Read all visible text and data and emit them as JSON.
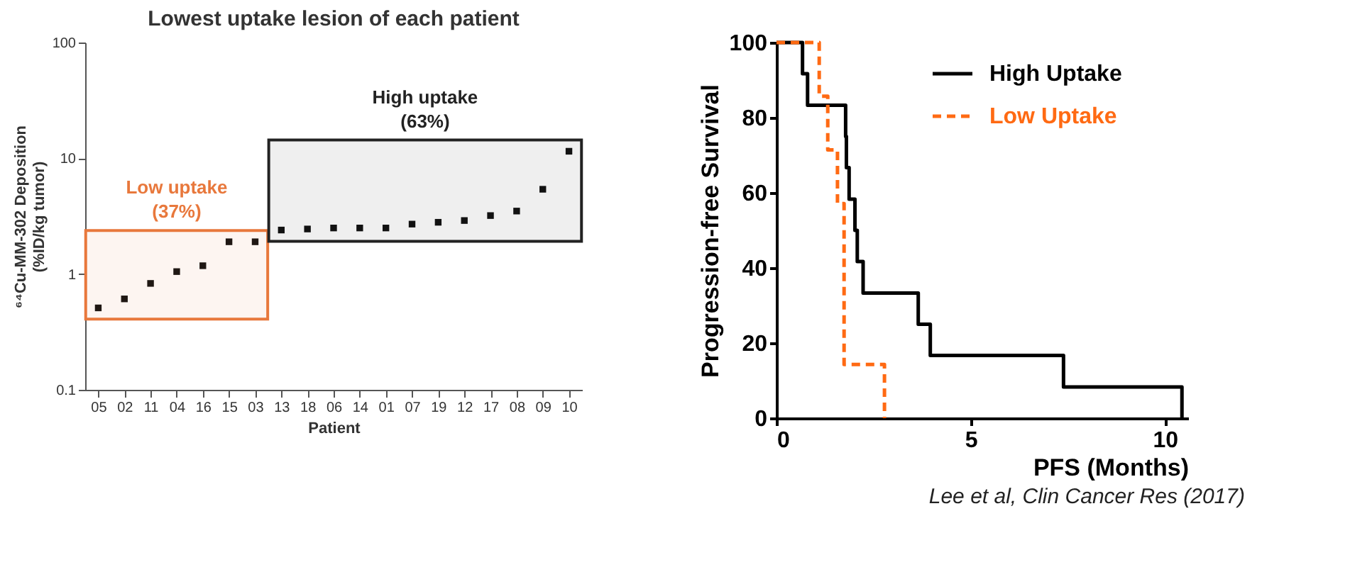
{
  "chart_data": [
    {
      "type": "scatter",
      "title": "Lowest uptake lesion of each patient",
      "xlabel": "Patient",
      "ylabel": "⁶⁴Cu-MM-302 Deposition\n(%ID/kg tumor)",
      "categories": [
        "05",
        "02",
        "11",
        "04",
        "16",
        "15",
        "03",
        "13",
        "18",
        "06",
        "14",
        "01",
        "07",
        "19",
        "12",
        "17",
        "08",
        "09",
        "10"
      ],
      "series": [
        {
          "color": "#111111",
          "values": [
            0.51,
            0.61,
            0.83,
            1.05,
            1.18,
            1.9,
            1.9,
            2.4,
            2.45,
            2.5,
            2.5,
            2.5,
            2.7,
            2.8,
            2.9,
            3.2,
            3.5,
            5.4,
            11.5
          ]
        }
      ],
      "log": "y",
      "ylim": [
        0.1,
        100
      ],
      "yticks": [
        0.1,
        1,
        10,
        100
      ],
      "marker": "square",
      "grid": false,
      "bands": [
        {
          "axis": "x",
          "from": "05",
          "to": "03",
          "label": "Low uptake\n(37%)",
          "color": "#e8783c"
        },
        {
          "axis": "x",
          "from": "13",
          "to": "10",
          "label": "High uptake\n(63%)",
          "color": "#222222"
        }
      ]
    },
    {
      "type": "step",
      "xlabel": "PFS (Months)",
      "ylabel": "Progression-free Survival",
      "xlim": [
        0,
        10.6
      ],
      "xticks": [
        0,
        5,
        10
      ],
      "ylim": [
        0,
        100
      ],
      "yticks": [
        0,
        20,
        40,
        60,
        80,
        100
      ],
      "legend": "top right",
      "grid": false,
      "series": [
        {
          "name": "High Uptake",
          "color": "#000000",
          "line_style": "solid",
          "x": [
            0,
            0.67,
            0.8,
            1.78,
            1.8,
            1.87,
            2.02,
            2.08,
            2.23,
            3.65,
            3.96,
            7.39,
            10.44
          ],
          "values": [
            100,
            91.7,
            83.3,
            75,
            66.7,
            58.3,
            50,
            41.7,
            33.3,
            25,
            16.7,
            8.3,
            0
          ]
        },
        {
          "name": "Low Uptake",
          "color": "#ff6a13",
          "line_style": "dashed",
          "x": [
            0,
            1.1,
            1.32,
            1.57,
            1.74,
            2.78
          ],
          "values": [
            100,
            85.7,
            71.4,
            57.1,
            14.3,
            0
          ]
        }
      ],
      "annotations": [
        "Lee et al, Clin Cancer Res (2017)"
      ]
    }
  ]
}
